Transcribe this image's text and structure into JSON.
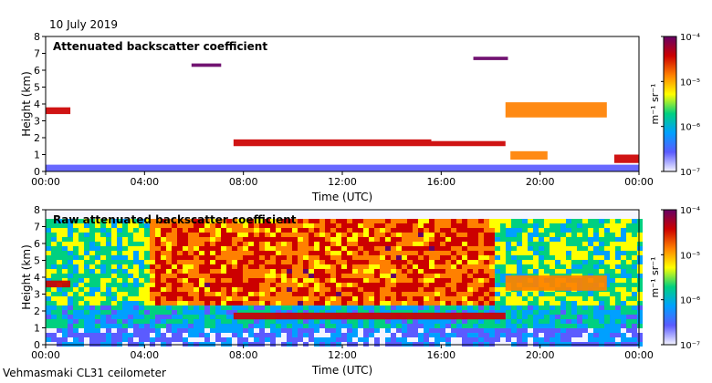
{
  "date_label": "10 July 2019",
  "site_label": "Vehmasmaki CL31 ceilometer",
  "colors": {
    "scale": [
      "#f4f4ff",
      "#5b5bff",
      "#00a0ff",
      "#00d080",
      "#ffff00",
      "#ff8000",
      "#cc0000",
      "#660066"
    ]
  },
  "chart_data": [
    {
      "type": "heatmap",
      "title": "Attenuated backscatter coefficient",
      "xlabel": "Time (UTC)",
      "ylabel": "Height (km)",
      "x_ticks": [
        "00:00",
        "04:00",
        "08:00",
        "12:00",
        "16:00",
        "20:00",
        "00:00"
      ],
      "y_ticks": [
        "0",
        "1",
        "2",
        "3",
        "4",
        "5",
        "6",
        "7",
        "8"
      ],
      "xlim_hours": [
        0,
        24
      ],
      "ylim_km": [
        0,
        8
      ],
      "colorbar": {
        "label": "m⁻¹ sr⁻¹",
        "ticks": [
          "10⁻⁷",
          "10⁻⁶",
          "10⁻⁵",
          "10⁻⁴"
        ],
        "range_log10": [
          -7,
          -4
        ]
      },
      "features": [
        {
          "name": "near-surface layer",
          "start_h": 0,
          "end_h": 24,
          "base_km": 0,
          "top_km": 0.4,
          "log_value": -6.6
        },
        {
          "name": "early cloud",
          "start_h": 0,
          "end_h": 1,
          "base_km": 3.4,
          "top_km": 3.8,
          "log_value": -4.5
        },
        {
          "name": "cloud band",
          "start_h": 7.6,
          "end_h": 15.6,
          "base_km": 1.5,
          "top_km": 1.9,
          "log_value": -4.4
        },
        {
          "name": "cloud band tail",
          "start_h": 15.6,
          "end_h": 18.6,
          "base_km": 1.5,
          "top_km": 1.8,
          "log_value": -4.6
        },
        {
          "name": "mid cloud",
          "start_h": 18.6,
          "end_h": 22.7,
          "base_km": 3.2,
          "top_km": 4.1,
          "log_value": -4.9
        },
        {
          "name": "low cloud",
          "start_h": 18.8,
          "end_h": 20.3,
          "base_km": 0.7,
          "top_km": 1.2,
          "log_value": -5.0
        },
        {
          "name": "high cloud",
          "start_h": 17.3,
          "end_h": 18.7,
          "base_km": 6.6,
          "top_km": 6.8,
          "log_value": -4.2
        },
        {
          "name": "high cloud 2",
          "start_h": 5.9,
          "end_h": 7.1,
          "base_km": 6.2,
          "top_km": 6.4,
          "log_value": -4.2
        },
        {
          "name": "late low cloud",
          "start_h": 23,
          "end_h": 24,
          "base_km": 0.5,
          "top_km": 1.0,
          "log_value": -4.6
        }
      ]
    },
    {
      "type": "heatmap",
      "title": "Raw attenuated backscatter coefficient",
      "xlabel": "Time (UTC)",
      "ylabel": "Height (km)",
      "x_ticks": [
        "00:00",
        "04:00",
        "08:00",
        "12:00",
        "16:00",
        "20:00",
        "00:00"
      ],
      "y_ticks": [
        "0",
        "1",
        "2",
        "3",
        "4",
        "5",
        "6",
        "7",
        "8"
      ],
      "xlim_hours": [
        0,
        24
      ],
      "ylim_km": [
        0,
        8
      ],
      "colorbar": {
        "label": "m⁻¹ sr⁻¹",
        "ticks": [
          "10⁻⁷",
          "10⁻⁶",
          "10⁻⁵",
          "10⁻⁴"
        ],
        "range_log10": [
          -7,
          -4
        ]
      },
      "features": [
        {
          "name": "daytime noise",
          "start_h": 4,
          "end_h": 18,
          "base_km": 2.5,
          "top_km": 7.6,
          "log_value": -4.6
        },
        {
          "name": "night noise",
          "start_h": 0,
          "end_h": 4,
          "base_km": 2.5,
          "top_km": 7.6,
          "log_value": -5.6
        },
        {
          "name": "evening noise",
          "start_h": 18,
          "end_h": 24,
          "base_km": 2.5,
          "top_km": 7.6,
          "log_value": -5.3
        },
        {
          "name": "cloud band",
          "start_h": 7.6,
          "end_h": 18.6,
          "base_km": 1.5,
          "top_km": 1.9,
          "log_value": -4.3
        },
        {
          "name": "mid cloud",
          "start_h": 18.6,
          "end_h": 22.7,
          "base_km": 3.2,
          "top_km": 4.1,
          "log_value": -4.9
        },
        {
          "name": "early cloud",
          "start_h": 0,
          "end_h": 1,
          "base_km": 3.4,
          "top_km": 3.8,
          "log_value": -4.5
        }
      ]
    }
  ]
}
